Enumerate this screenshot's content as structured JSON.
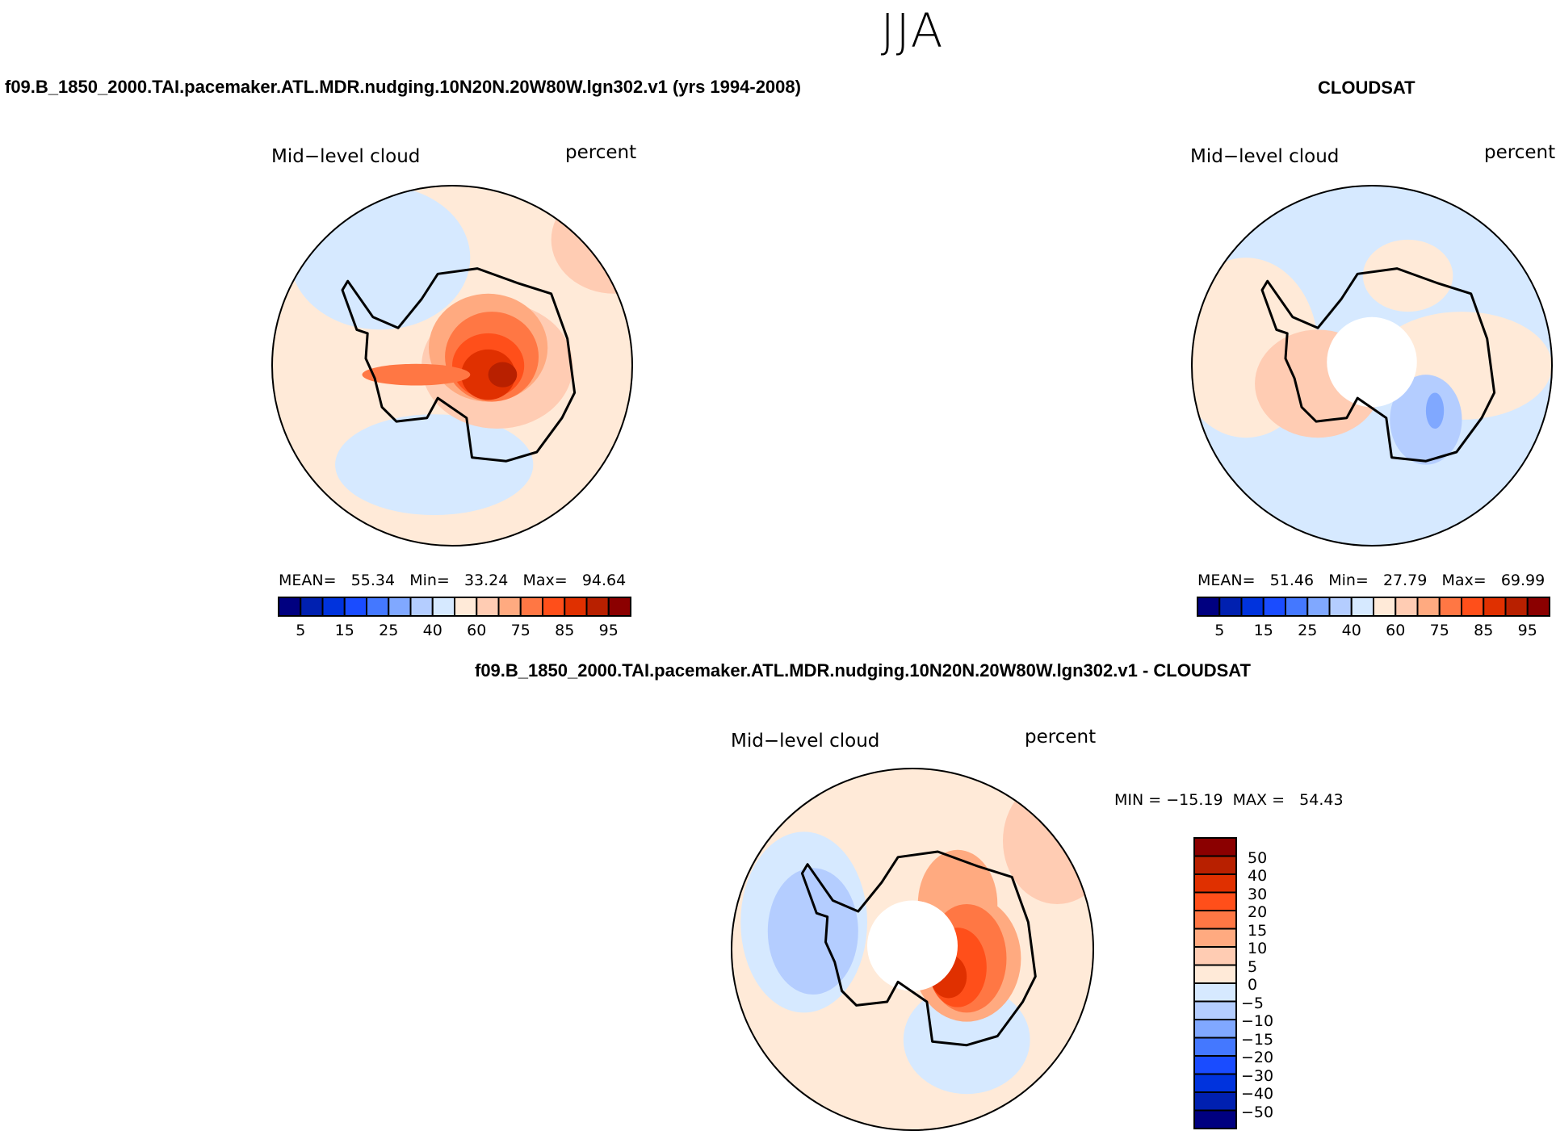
{
  "chart_data": {
    "type": "heatmap",
    "title": "JJA",
    "palette": [
      "#000080",
      "#0020b0",
      "#0033dd",
      "#1a4cff",
      "#4478ff",
      "#80a8ff",
      "#b4cdff",
      "#d6e9ff",
      "#ffead8",
      "#ffccb3",
      "#ffaa80",
      "#ff7744",
      "#ff4f1a",
      "#e03000",
      "#b82000",
      "#8b0000"
    ],
    "panels": [
      {
        "title": "f09.B_1850_2000.TAI.pacemaker.ATL.MDR.nudging.10N20N.20W80W.lgn302.v1 (yrs 1994-2008)",
        "variable": "Mid−level cloud",
        "units": "percent",
        "mean_label": "MEAN=",
        "mean": "55.34",
        "min_label": "Min=",
        "min": "33.24",
        "max_label": "Max=",
        "max": "94.64",
        "colorbar_ticks": [
          "5",
          "15",
          "25",
          "40",
          "60",
          "75",
          "85",
          "95"
        ]
      },
      {
        "title": "CLOUDSAT",
        "variable": "Mid−level cloud",
        "units": "percent",
        "mean_label": "MEAN=",
        "mean": "51.46",
        "min_label": "Min=",
        "min": "27.79",
        "max_label": "Max=",
        "max": "69.99",
        "colorbar_ticks": [
          "5",
          "15",
          "25",
          "40",
          "60",
          "75",
          "85",
          "95"
        ]
      },
      {
        "title": "f09.B_1850_2000.TAI.pacemaker.ATL.MDR.nudging.10N20N.20W80W.lgn302.v1 - CLOUDSAT",
        "variable": "Mid−level cloud",
        "units": "percent",
        "min_label": "MIN =",
        "min": "−15.19",
        "max_label": "MAX =",
        "max": "54.43",
        "colorbar_ticks": [
          "50",
          "40",
          "30",
          "20",
          "15",
          "10",
          "5",
          "0",
          "−5",
          "−10",
          "−15",
          "−20",
          "−30",
          "−40",
          "−50"
        ]
      }
    ]
  }
}
